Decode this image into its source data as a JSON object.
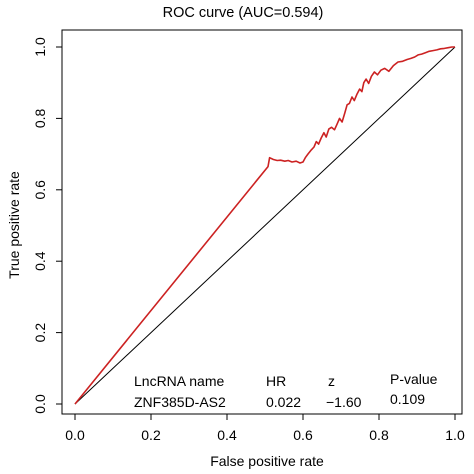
{
  "chart_data": {
    "type": "line",
    "title": "ROC curve (AUC=0.594)",
    "xlabel": "False positive rate",
    "ylabel": "True positive rate",
    "xlim": [
      0,
      1
    ],
    "ylim": [
      0,
      1
    ],
    "x_ticks": [
      "0.0",
      "0.2",
      "0.4",
      "0.6",
      "0.8",
      "1.0"
    ],
    "y_ticks": [
      "0.0",
      "0.2",
      "0.4",
      "0.6",
      "0.8",
      "1.0"
    ],
    "grid": false,
    "colors": {
      "roc": "#cc2222",
      "reference": "#000000"
    },
    "series": [
      {
        "values": [
          [
            0.0,
            0.0
          ],
          [
            0.508,
            0.665
          ],
          [
            0.512,
            0.69
          ],
          [
            0.522,
            0.685
          ],
          [
            0.532,
            0.682
          ],
          [
            0.541,
            0.683
          ],
          [
            0.552,
            0.68
          ],
          [
            0.561,
            0.682
          ],
          [
            0.571,
            0.678
          ],
          [
            0.582,
            0.68
          ],
          [
            0.592,
            0.675
          ],
          [
            0.6,
            0.678
          ],
          [
            0.606,
            0.69
          ],
          [
            0.613,
            0.7
          ],
          [
            0.622,
            0.712
          ],
          [
            0.629,
            0.72
          ],
          [
            0.635,
            0.735
          ],
          [
            0.641,
            0.728
          ],
          [
            0.648,
            0.745
          ],
          [
            0.655,
            0.76
          ],
          [
            0.661,
            0.748
          ],
          [
            0.668,
            0.77
          ],
          [
            0.675,
            0.775
          ],
          [
            0.683,
            0.768
          ],
          [
            0.69,
            0.785
          ],
          [
            0.696,
            0.8
          ],
          [
            0.703,
            0.79
          ],
          [
            0.71,
            0.815
          ],
          [
            0.716,
            0.838
          ],
          [
            0.722,
            0.842
          ],
          [
            0.729,
            0.86
          ],
          [
            0.735,
            0.85
          ],
          [
            0.742,
            0.868
          ],
          [
            0.749,
            0.882
          ],
          [
            0.755,
            0.875
          ],
          [
            0.76,
            0.9
          ],
          [
            0.766,
            0.91
          ],
          [
            0.773,
            0.898
          ],
          [
            0.78,
            0.918
          ],
          [
            0.788,
            0.93
          ],
          [
            0.796,
            0.922
          ],
          [
            0.805,
            0.935
          ],
          [
            0.815,
            0.94
          ],
          [
            0.826,
            0.932
          ],
          [
            0.838,
            0.948
          ],
          [
            0.85,
            0.958
          ],
          [
            0.862,
            0.96
          ],
          [
            0.874,
            0.965
          ],
          [
            0.884,
            0.968
          ],
          [
            0.894,
            0.972
          ],
          [
            0.903,
            0.978
          ],
          [
            0.912,
            0.98
          ],
          [
            0.922,
            0.984
          ],
          [
            0.932,
            0.988
          ],
          [
            0.942,
            0.99
          ],
          [
            0.952,
            0.992
          ],
          [
            0.962,
            0.995
          ],
          [
            0.972,
            0.996
          ],
          [
            0.982,
            0.998
          ],
          [
            0.992,
            1.0
          ],
          [
            1.0,
            1.0
          ]
        ]
      },
      {
        "values": [
          [
            0,
            0
          ],
          [
            1,
            1
          ]
        ]
      }
    ],
    "table": {
      "headers": [
        "LncRNA name",
        "HR",
        "z",
        "P-value"
      ],
      "row": [
        "ZNF385D-AS2",
        "0.022",
        "−1.60",
        "0.109"
      ]
    }
  }
}
